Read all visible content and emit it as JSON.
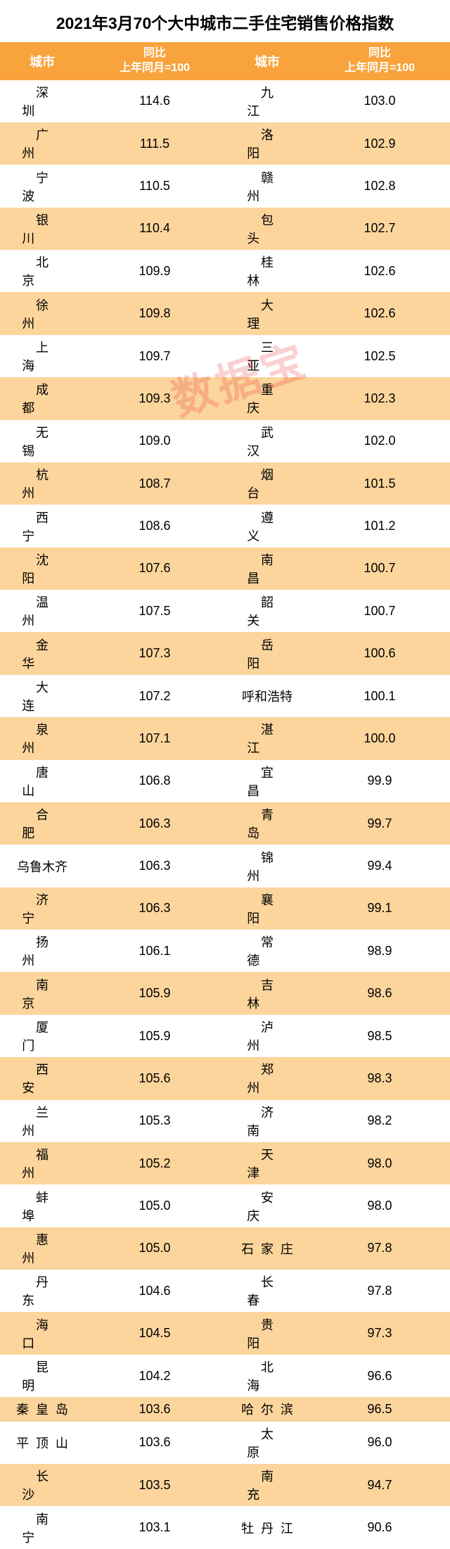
{
  "title": "2021年3月70个大中城市二手住宅销售价格指数",
  "watermark": "数据宝",
  "headers": {
    "city": "城市",
    "yoy_line1": "同比",
    "yoy_line2": "上年同月=100"
  },
  "colors": {
    "header_bg": "#f8a33c",
    "header_text": "#ffffff",
    "stripe_bg": "#fcd59c",
    "plain_bg": "#ffffff",
    "text": "#000000",
    "watermark": "rgba(230,40,40,0.22)"
  },
  "rows": [
    {
      "c1": "深圳",
      "v1": "114.6",
      "c2": "九江",
      "v2": "103.0",
      "hl": false
    },
    {
      "c1": "广州",
      "v1": "111.5",
      "c2": "洛阳",
      "v2": "102.9",
      "hl": true
    },
    {
      "c1": "宁波",
      "v1": "110.5",
      "c2": "赣州",
      "v2": "102.8",
      "hl": false
    },
    {
      "c1": "银川",
      "v1": "110.4",
      "c2": "包头",
      "v2": "102.7",
      "hl": true
    },
    {
      "c1": "北京",
      "v1": "109.9",
      "c2": "桂林",
      "v2": "102.6",
      "hl": false
    },
    {
      "c1": "徐州",
      "v1": "109.8",
      "c2": "大理",
      "v2": "102.6",
      "hl": true
    },
    {
      "c1": "上海",
      "v1": "109.7",
      "c2": "三亚",
      "v2": "102.5",
      "hl": false
    },
    {
      "c1": "成都",
      "v1": "109.3",
      "c2": "重庆",
      "v2": "102.3",
      "hl": true
    },
    {
      "c1": "无锡",
      "v1": "109.0",
      "c2": "武汉",
      "v2": "102.0",
      "hl": false
    },
    {
      "c1": "杭州",
      "v1": "108.7",
      "c2": "烟台",
      "v2": "101.5",
      "hl": true
    },
    {
      "c1": "西宁",
      "v1": "108.6",
      "c2": "遵义",
      "v2": "101.2",
      "hl": false
    },
    {
      "c1": "沈阳",
      "v1": "107.6",
      "c2": "南昌",
      "v2": "100.7",
      "hl": true
    },
    {
      "c1": "温州",
      "v1": "107.5",
      "c2": "韶关",
      "v2": "100.7",
      "hl": false
    },
    {
      "c1": "金华",
      "v1": "107.3",
      "c2": "岳阳",
      "v2": "100.6",
      "hl": true
    },
    {
      "c1": "大连",
      "v1": "107.2",
      "c2": "呼和浩特",
      "v2": "100.1",
      "hl": false
    },
    {
      "c1": "泉州",
      "v1": "107.1",
      "c2": "湛江",
      "v2": "100.0",
      "hl": true
    },
    {
      "c1": "唐山",
      "v1": "106.8",
      "c2": "宜昌",
      "v2": "99.9",
      "hl": false
    },
    {
      "c1": "合肥",
      "v1": "106.3",
      "c2": "青岛",
      "v2": "99.7",
      "hl": true
    },
    {
      "c1": "乌鲁木齐",
      "v1": "106.3",
      "c2": "锦州",
      "v2": "99.4",
      "hl": false
    },
    {
      "c1": "济宁",
      "v1": "106.3",
      "c2": "襄阳",
      "v2": "99.1",
      "hl": true
    },
    {
      "c1": "扬州",
      "v1": "106.1",
      "c2": "常德",
      "v2": "98.9",
      "hl": false
    },
    {
      "c1": "南京",
      "v1": "105.9",
      "c2": "吉林",
      "v2": "98.6",
      "hl": true
    },
    {
      "c1": "厦门",
      "v1": "105.9",
      "c2": "泸州",
      "v2": "98.5",
      "hl": false
    },
    {
      "c1": "西安",
      "v1": "105.6",
      "c2": "郑州",
      "v2": "98.3",
      "hl": true
    },
    {
      "c1": "兰州",
      "v1": "105.3",
      "c2": "济南",
      "v2": "98.2",
      "hl": false
    },
    {
      "c1": "福州",
      "v1": "105.2",
      "c2": "天津",
      "v2": "98.0",
      "hl": true
    },
    {
      "c1": "蚌埠",
      "v1": "105.0",
      "c2": "安庆",
      "v2": "98.0",
      "hl": false
    },
    {
      "c1": "惠州",
      "v1": "105.0",
      "c2": "石家庄",
      "v2": "97.8",
      "hl": true
    },
    {
      "c1": "丹东",
      "v1": "104.6",
      "c2": "长春",
      "v2": "97.8",
      "hl": false
    },
    {
      "c1": "海口",
      "v1": "104.5",
      "c2": "贵阳",
      "v2": "97.3",
      "hl": true
    },
    {
      "c1": "昆明",
      "v1": "104.2",
      "c2": "北海",
      "v2": "96.6",
      "hl": false
    },
    {
      "c1": "秦皇岛",
      "v1": "103.6",
      "c2": "哈尔滨",
      "v2": "96.5",
      "hl": true
    },
    {
      "c1": "平顶山",
      "v1": "103.6",
      "c2": "太原",
      "v2": "96.0",
      "hl": false
    },
    {
      "c1": "长沙",
      "v1": "103.5",
      "c2": "南充",
      "v2": "94.7",
      "hl": true
    },
    {
      "c1": "南宁",
      "v1": "103.1",
      "c2": "牡丹江",
      "v2": "90.6",
      "hl": false
    }
  ]
}
